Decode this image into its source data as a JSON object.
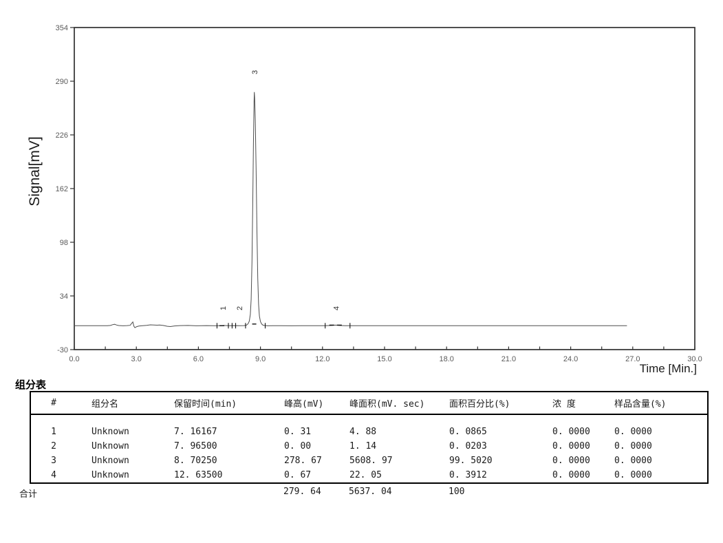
{
  "chart_data": {
    "type": "line",
    "title": "",
    "xlabel": "Time [Min.]",
    "ylabel": "Signal[mV]",
    "xlim": [
      0,
      30
    ],
    "ylim": [
      -30,
      354
    ],
    "x_major_step": 3.0,
    "x_minor_step": 1.5,
    "y_tick_step": 64,
    "x_tick_labels": [
      "0.0",
      "3.0",
      "6.0",
      "9.0",
      "12.0",
      "15.0",
      "18.0",
      "21.0",
      "24.0",
      "27.0",
      "30.0"
    ],
    "y_tick_labels": [
      "354",
      "290",
      "226",
      "162",
      "98",
      "34",
      "-30"
    ],
    "grid": false,
    "legend": "none",
    "series": [
      {
        "name": "signal",
        "points": [
          [
            0,
            -1.5
          ],
          [
            0.8,
            -1.5
          ],
          [
            1.6,
            -1.5
          ],
          [
            1.75,
            -1.2
          ],
          [
            1.85,
            -0.3
          ],
          [
            1.95,
            0.2
          ],
          [
            2.05,
            -0.7
          ],
          [
            2.15,
            -1.3
          ],
          [
            2.35,
            -1.6
          ],
          [
            2.55,
            -1.4
          ],
          [
            2.7,
            -1.0
          ],
          [
            2.78,
            1.5
          ],
          [
            2.83,
            3.0
          ],
          [
            2.88,
            -2.0
          ],
          [
            2.93,
            -3.8
          ],
          [
            3.02,
            -2.6
          ],
          [
            3.12,
            -1.9
          ],
          [
            3.3,
            -1.5
          ],
          [
            3.5,
            -1.0
          ],
          [
            3.68,
            -0.5
          ],
          [
            3.85,
            -0.6
          ],
          [
            4.0,
            -0.9
          ],
          [
            4.12,
            -0.6
          ],
          [
            4.3,
            -1.2
          ],
          [
            4.5,
            -2.2
          ],
          [
            4.65,
            -2.5
          ],
          [
            4.85,
            -1.8
          ],
          [
            5.1,
            -1.4
          ],
          [
            5.5,
            -1.2
          ],
          [
            5.9,
            -1.6
          ],
          [
            6.4,
            -1.4
          ],
          [
            6.9,
            -1.6
          ],
          [
            7.1,
            -1.4
          ],
          [
            7.22,
            -1.2
          ],
          [
            7.45,
            -1.5
          ],
          [
            7.75,
            -1.4
          ],
          [
            8.0,
            -1.5
          ],
          [
            8.2,
            -1.4
          ],
          [
            8.32,
            -0.9
          ],
          [
            8.4,
            0.8
          ],
          [
            8.46,
            4
          ],
          [
            8.51,
            12
          ],
          [
            8.55,
            30
          ],
          [
            8.59,
            75
          ],
          [
            8.63,
            150
          ],
          [
            8.66,
            215
          ],
          [
            8.69,
            265
          ],
          [
            8.7025,
            277
          ],
          [
            8.72,
            270
          ],
          [
            8.75,
            243
          ],
          [
            8.79,
            185
          ],
          [
            8.83,
            112
          ],
          [
            8.87,
            55
          ],
          [
            8.91,
            24
          ],
          [
            8.95,
            10
          ],
          [
            9.0,
            3.5
          ],
          [
            9.06,
            0.5
          ],
          [
            9.12,
            -0.8
          ],
          [
            9.2,
            -1.3
          ],
          [
            9.35,
            -1.6
          ],
          [
            9.6,
            -1.5
          ],
          [
            10.0,
            -1.5
          ],
          [
            10.5,
            -1.6
          ],
          [
            11.0,
            -1.5
          ],
          [
            11.6,
            -1.5
          ],
          [
            12.1,
            -1.5
          ],
          [
            12.45,
            -1.2
          ],
          [
            12.635,
            -0.8
          ],
          [
            12.85,
            -1.3
          ],
          [
            13.1,
            -1.5
          ],
          [
            13.5,
            -1.5
          ],
          [
            14.5,
            -1.5
          ],
          [
            16,
            -1.5
          ],
          [
            18,
            -1.5
          ],
          [
            20,
            -1.5
          ],
          [
            22,
            -1.5
          ],
          [
            24,
            -1.5
          ],
          [
            26,
            -1.5
          ],
          [
            26.72,
            -1.5
          ]
        ]
      }
    ],
    "peaks": [
      {
        "label": "1",
        "rt": 7.16167,
        "height_mV": 0.31,
        "label_y": 451
      },
      {
        "label": "2",
        "rt": 7.965,
        "height_mV": 0.0,
        "label_y": 451
      },
      {
        "label": "3",
        "rt": 8.7025,
        "height_mV": 278.67,
        "label_y": 108
      },
      {
        "label": "4",
        "rt": 12.635,
        "height_mV": 0.67,
        "label_y": 451
      }
    ],
    "baseline_ticks": [
      6.9,
      7.45,
      7.63,
      7.8,
      8.28,
      9.23,
      12.13,
      13.33
    ],
    "baseline_dashes": [
      [
        7.02,
        7.33,
        -1.5
      ],
      [
        8.6,
        8.8,
        0.5
      ],
      [
        12.33,
        12.58,
        -0.8
      ],
      [
        12.7,
        13.02,
        -0.8
      ]
    ]
  },
  "table": {
    "title": "组分表",
    "headers": [
      "#",
      "组分名",
      "保留时间(min)",
      "峰高(mV)",
      "峰面积(mV. sec)",
      "面积百分比(%)",
      "浓 度",
      "样品含量(%)"
    ],
    "rows": [
      {
        "cells": [
          "1",
          "Unknown",
          "7. 16167",
          "0. 31",
          "4. 88",
          "0. 0865",
          "0. 0000",
          "0. 0000"
        ]
      },
      {
        "cells": [
          "2",
          "Unknown",
          "7. 96500",
          "0. 00",
          "1. 14",
          "0. 0203",
          "0. 0000",
          "0. 0000"
        ]
      },
      {
        "cells": [
          "3",
          "Unknown",
          "8. 70250",
          "278. 67",
          "5608. 97",
          "99. 5020",
          "0. 0000",
          "0. 0000"
        ]
      },
      {
        "cells": [
          "4",
          "Unknown",
          "12. 63500",
          "0. 67",
          "22. 05",
          "0. 3912",
          "0. 0000",
          "0. 0000"
        ]
      }
    ],
    "totals": {
      "label": "合计",
      "height": "279. 64",
      "area": "5637. 04",
      "pct": "100"
    }
  },
  "colors": {
    "trace": "#4d4d4d",
    "frame": "#2f2f2f",
    "tick_text": "#5a5a5a",
    "marks": "#111111",
    "background": "#ffffff"
  }
}
